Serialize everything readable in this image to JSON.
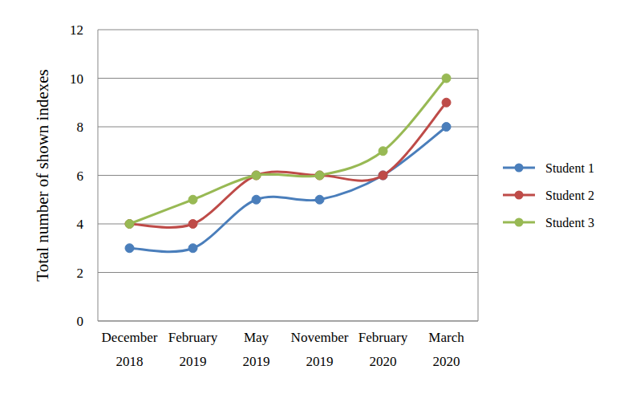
{
  "chart_data": {
    "type": "line",
    "y_label": "Total number of shown indexes",
    "categories": [
      "December 2018",
      "February 2019",
      "May 2019",
      "November 2019",
      "February 2020",
      "March 2020"
    ],
    "series": [
      {
        "name": "Student 1",
        "color": "#4a7ebb",
        "marker": "circle",
        "line_style": "smooth",
        "values": [
          3,
          3,
          5,
          5,
          6,
          8
        ]
      },
      {
        "name": "Student 2",
        "color": "#be4b48",
        "marker": "circle",
        "line_style": "smooth",
        "values": [
          4,
          4,
          6,
          6,
          6,
          9
        ]
      },
      {
        "name": "Student 3",
        "color": "#98b954",
        "marker": "circle",
        "line_style": "smooth",
        "values": [
          4,
          5,
          6,
          6,
          7,
          10
        ]
      }
    ],
    "ylim": [
      0,
      12
    ],
    "yticks": [
      0,
      2,
      4,
      6,
      8,
      10,
      12
    ],
    "grid": true,
    "legend": "right"
  }
}
